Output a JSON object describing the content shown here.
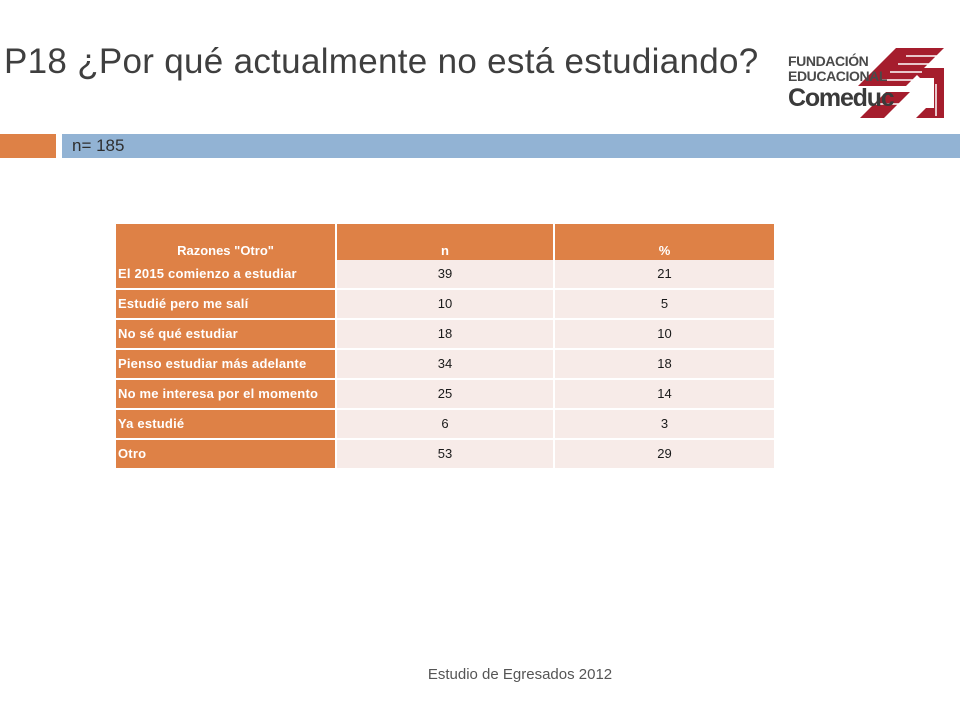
{
  "slide": {
    "title": "P18 ¿Por qué actualmente no está estudiando?",
    "subtitle": "n= 185",
    "footer": "Estudio de Egresados 2012"
  },
  "logo": {
    "line1": "FUNDACIÓN",
    "line2": "EDUCACIONAL",
    "line3": "Comeduc",
    "colors": {
      "mark": "#a51d2d",
      "text": "#4a4a4a"
    }
  },
  "table": {
    "headers": [
      "Razones \"Otro\"",
      "n",
      "%"
    ],
    "rows": [
      {
        "reason": "El 2015 comienzo a estudiar",
        "n": "39",
        "pct": "21"
      },
      {
        "reason": "Estudié pero me salí",
        "n": "10",
        "pct": "5"
      },
      {
        "reason": "No sé qué estudiar",
        "n": "18",
        "pct": "10"
      },
      {
        "reason": "Pienso estudiar más adelante",
        "n": "34",
        "pct": "18"
      },
      {
        "reason": "No me interesa por el momento",
        "n": "25",
        "pct": "14"
      },
      {
        "reason": "Ya estudié",
        "n": "6",
        "pct": "3"
      },
      {
        "reason": "Otro",
        "n": "53",
        "pct": "29"
      }
    ]
  },
  "colors": {
    "accent_orange": "#de8146",
    "accent_blue": "#92b3d4",
    "cell_light": "#f7ebe8"
  }
}
